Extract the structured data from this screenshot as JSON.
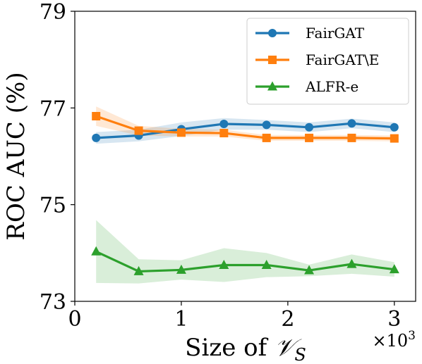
{
  "chart_data": {
    "type": "line",
    "xlabel_prefix": "Size of ",
    "xlabel_symbol": "𝒱",
    "xlabel_subscript": "S",
    "ylabel": "ROC AUC (%)",
    "x_multiplier_base": "×10",
    "x_multiplier_exp": "3",
    "xlim": [
      0,
      3.2
    ],
    "ylim": [
      73,
      79
    ],
    "xticks": [
      0,
      1,
      2,
      3
    ],
    "yticks": [
      73,
      75,
      77,
      79
    ],
    "grid": false,
    "legend_position": "top-right",
    "x": [
      0.2,
      0.6,
      1.0,
      1.4,
      1.8,
      2.2,
      2.6,
      3.0
    ],
    "series": [
      {
        "name": "FairGAT",
        "color": "#1f77b4",
        "marker": "circle",
        "values": [
          76.38,
          76.43,
          76.56,
          76.67,
          76.65,
          76.6,
          76.68,
          76.6
        ],
        "band": [
          0.12,
          0.12,
          0.14,
          0.12,
          0.1,
          0.1,
          0.1,
          0.1
        ]
      },
      {
        "name": "FairGAT\\E",
        "color": "#ff7f0e",
        "marker": "square",
        "values": [
          76.83,
          76.53,
          76.49,
          76.48,
          76.38,
          76.38,
          76.38,
          76.37
        ],
        "band": [
          0.2,
          0.1,
          0.08,
          0.07,
          0.06,
          0.06,
          0.06,
          0.06
        ]
      },
      {
        "name": "ALFR-e",
        "color": "#2ca02c",
        "marker": "triangle",
        "values": [
          74.03,
          73.62,
          73.65,
          73.75,
          73.75,
          73.64,
          73.77,
          73.66
        ],
        "band": [
          0.65,
          0.25,
          0.2,
          0.35,
          0.25,
          0.12,
          0.2,
          0.15
        ]
      }
    ]
  }
}
